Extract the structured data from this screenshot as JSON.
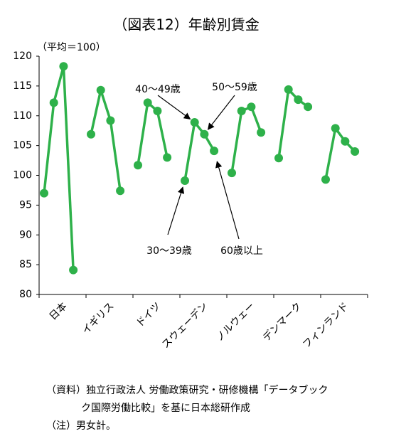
{
  "chart_data": {
    "type": "line",
    "title": "（図表12）年齢別賃金",
    "y_label": "（平均＝100）",
    "categories": [
      "日本",
      "イギリス",
      "ドイツ",
      "スウェーデン",
      "ノルウェー",
      "デンマーク",
      "フィンランド"
    ],
    "series": [
      {
        "name": "30～39歳",
        "color": "#2eb14a",
        "values": [
          97.0,
          106.9,
          101.7,
          99.1,
          100.4,
          102.9,
          99.3
        ]
      },
      {
        "name": "40～49歳",
        "color": "#2eb14a",
        "values": [
          112.2,
          114.3,
          112.2,
          108.9,
          110.8,
          114.4,
          107.9
        ]
      },
      {
        "name": "50～59歳",
        "color": "#2eb14a",
        "values": [
          118.3,
          109.2,
          110.8,
          106.9,
          111.5,
          112.7,
          105.7
        ]
      },
      {
        "name": "60歳以上",
        "color": "#2eb14a",
        "values": [
          84.1,
          97.4,
          103.0,
          104.1,
          107.2,
          111.5,
          104.0
        ]
      }
    ],
    "ylim": [
      80,
      120
    ],
    "yticks": [
      80,
      85,
      90,
      95,
      100,
      105,
      110,
      115,
      120
    ],
    "grid": false,
    "notes": [
      "（資料）独立行政法人 労働政策研究・研修機構「データブック",
      "ク国際労働比較」を基に日本総研作成",
      "（注）男女計。"
    ]
  }
}
